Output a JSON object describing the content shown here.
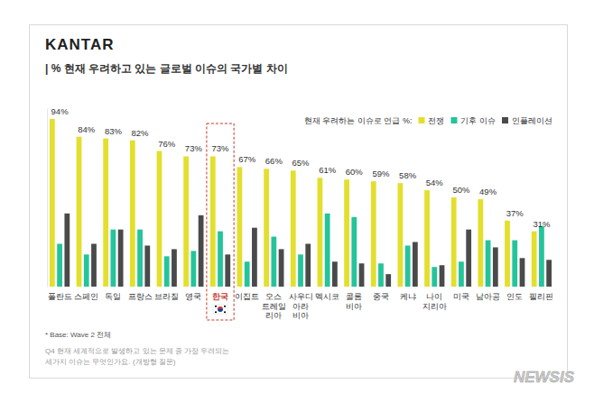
{
  "chart_data": {
    "type": "bar",
    "brand": "KANTAR",
    "title": "| % 현재 우려하고 있는 글로벌 이슈의 국가별 차이",
    "legend_title": "현재 우려하는 이슈로 언급 %:",
    "legend": "top-right",
    "categories": [
      "폴란드",
      "스페인",
      "독일",
      "프랑스",
      "브라질",
      "영국",
      "한국",
      "이집트",
      "오스\n트레일\n리아",
      "사우디\n아라\n비아",
      "멕시코",
      "콜롬\n비아",
      "중국",
      "케냐",
      "나이\n지리아",
      "미국",
      "남아공",
      "인도",
      "필리핀"
    ],
    "series": [
      {
        "name": "전쟁",
        "color": "#e3df2e",
        "values": [
          94,
          84,
          83,
          82,
          76,
          73,
          73,
          67,
          66,
          65,
          61,
          60,
          59,
          58,
          54,
          50,
          49,
          37,
          31
        ],
        "data_labels": true,
        "value_labels": [
          "94%",
          "84%",
          "83%",
          "82%",
          "76%",
          "73%",
          "73%",
          "67%",
          "66%",
          "65%",
          "61%",
          "60%",
          "59%",
          "58%",
          "54%",
          "50%",
          "49%",
          "37%",
          "31%"
        ]
      },
      {
        "name": "기후 이슈",
        "color": "#25c49b",
        "values": [
          24,
          18,
          32,
          32,
          17,
          20,
          31,
          14,
          28,
          18,
          41,
          39,
          13,
          23,
          11,
          14,
          26,
          26,
          34
        ]
      },
      {
        "name": "인플레이션",
        "color": "#4a4a4a",
        "values": [
          41,
          24,
          32,
          23,
          21,
          40,
          18,
          33,
          21,
          24,
          14,
          13,
          7,
          25,
          12,
          32,
          22,
          16,
          15
        ]
      }
    ],
    "ylim": [
      0,
      100
    ],
    "tick_labels": "x",
    "grid": false,
    "notes": [
      "* Base: Wave 2 전체",
      "Q4 현재 세계적으로 발생하고 있는 문제 중 가장 우려되는",
      "세가지 이슈는 무엇인가요. (개방형 질문)"
    ],
    "watermark": "NEWSIS"
  }
}
